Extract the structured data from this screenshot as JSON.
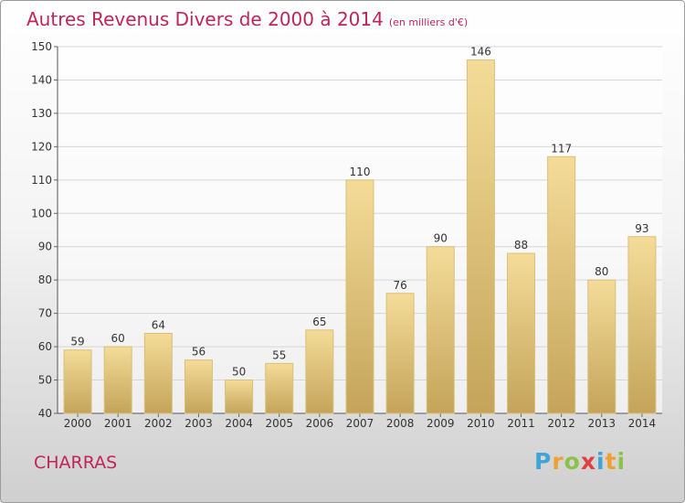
{
  "chart_data": {
    "type": "bar",
    "title": "Autres Revenus Divers de 2000 à 2014",
    "subtitle": "(en milliers d'€)",
    "categories": [
      "2000",
      "2001",
      "2002",
      "2003",
      "2004",
      "2005",
      "2006",
      "2007",
      "2008",
      "2009",
      "2010",
      "2011",
      "2012",
      "2013",
      "2014"
    ],
    "values": [
      59,
      60,
      64,
      56,
      50,
      55,
      65,
      110,
      76,
      90,
      146,
      88,
      117,
      80,
      93
    ],
    "ylim": [
      40,
      150
    ],
    "yticks": [
      40,
      50,
      60,
      70,
      80,
      90,
      100,
      110,
      120,
      130,
      140,
      150
    ],
    "grid": true,
    "colors": {
      "bar_light": "#f4dc98",
      "bar_dark": "#c4a45a",
      "text": "#c0245a"
    }
  },
  "place_name": "CHARRAS",
  "logo": {
    "letters": [
      "P",
      "r",
      "o",
      "x",
      "i",
      "t",
      "i"
    ],
    "colors": [
      "#3fa4d8",
      "#f0a030",
      "#8bc34a",
      "#e04040",
      "#3fa4d8",
      "#f0a030",
      "#8bc34a"
    ]
  }
}
